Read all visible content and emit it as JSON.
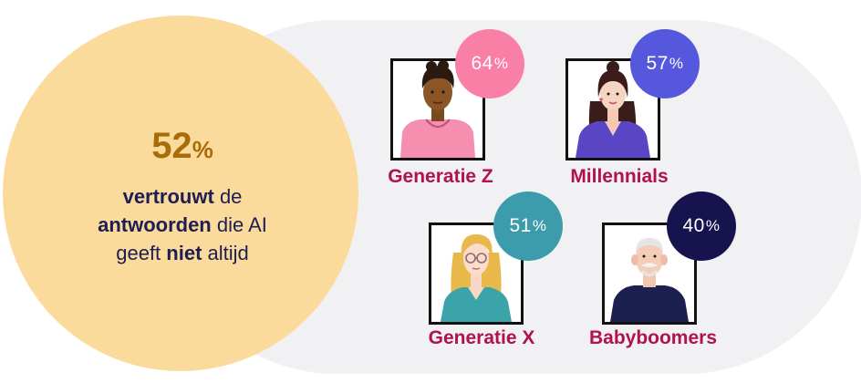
{
  "main_stat": {
    "value": "52",
    "unit": "%",
    "line1_bold": "vertrouwt",
    "line1_rest": " de",
    "line2_bold": "antwoorden",
    "line2_rest": " die AI",
    "line3_start": "geeft ",
    "line3_bold": "niet",
    "line3_rest": " altijd"
  },
  "generations": [
    {
      "name": "Generatie Z",
      "value": "64",
      "unit": "%",
      "badge_color": "#f97fa6"
    },
    {
      "name": "Millennials",
      "value": "57",
      "unit": "%",
      "badge_color": "#5557dc"
    },
    {
      "name": "Generatie X",
      "value": "51",
      "unit": "%",
      "badge_color": "#3d9cab"
    },
    {
      "name": "Babyboomers",
      "value": "40",
      "unit": "%",
      "badge_color": "#16134f"
    }
  ],
  "colors": {
    "background_pill": "#f1f0f2",
    "highlight_circle": "#fbdb9c",
    "main_percentage": "#a86c08",
    "body_text": "#1e1e52",
    "label_text": "#b0124d"
  }
}
